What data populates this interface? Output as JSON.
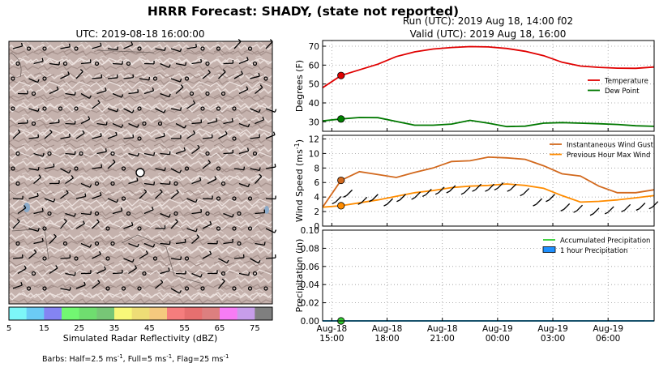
{
  "main_title": "HRRR Forecast: SHADY, (state not reported)",
  "map": {
    "title": "UTC: 2019-08-18 16:00:00",
    "colorbar_label": "Simulated Radar Reflectivity (dBZ)",
    "colorbar_ticks": [
      "5",
      "15",
      "25",
      "35",
      "45",
      "55",
      "65",
      "75"
    ],
    "colorbar_colors": [
      "#7df6f8",
      "#6bcbf5",
      "#8484f2",
      "#72f772",
      "#6fdd6f",
      "#77c676",
      "#f8f879",
      "#eedd76",
      "#f5c97e",
      "#f57d7d",
      "#e66f6f",
      "#dd7f7f",
      "#f77cf5",
      "#c79dea",
      "#7f7f7f"
    ],
    "barbs_note_a": "Barbs: Half=2.5 ms",
    "barbs_note_b": ", Full=5 ms",
    "barbs_note_c": ", Flag=25 ms",
    "sup_minus1": "-1"
  },
  "header": {
    "run": "Run (UTC): 2019 Aug 18, 14:00 f02",
    "valid": "Valid (UTC): 2019 Aug 18, 16:00"
  },
  "colors": {
    "temperature": "#e00000",
    "dew_point": "#007800",
    "gust": "#d2691e",
    "max_wind": "#ff8c00",
    "accum_precip": "#32cd32",
    "hourly_precip": "#1e90ff"
  },
  "chart_data": [
    {
      "type": "line",
      "ylabel": "Degrees (F)",
      "ylim": [
        25,
        73
      ],
      "yticks": [
        30,
        40,
        50,
        60,
        70
      ],
      "grid": true,
      "legend_position": "right",
      "x_hours": [
        0,
        1,
        2,
        3,
        4,
        5,
        6,
        7,
        8,
        9,
        10,
        11,
        12,
        13,
        14,
        15,
        16,
        17,
        18
      ],
      "highlight_hour": 1,
      "series": [
        {
          "name": "Temperature",
          "values": [
            48,
            54.5,
            57.5,
            60.5,
            64.5,
            67,
            68.5,
            69.3,
            69.8,
            69.6,
            68.8,
            67.3,
            65,
            61.5,
            59.5,
            58.8,
            58.4,
            58.3,
            59.0
          ]
        },
        {
          "name": "Dew Point",
          "values": [
            30.5,
            31.5,
            32.3,
            32.2,
            30.2,
            28.2,
            28.2,
            28.8,
            30.8,
            29.3,
            27.5,
            27.7,
            29.3,
            29.6,
            29.3,
            29.0,
            28.6,
            27.9,
            27.6
          ]
        }
      ]
    },
    {
      "type": "line",
      "ylabel": "Wind Speed (ms",
      "ylabel_sup": "-1",
      "ylim": [
        0,
        12.5
      ],
      "yticks": [
        0,
        2,
        4,
        6,
        8,
        10,
        12
      ],
      "grid": true,
      "legend_position": "top-right",
      "x_hours": [
        0,
        1,
        2,
        3,
        4,
        5,
        6,
        7,
        8,
        9,
        10,
        11,
        12,
        13,
        14,
        15,
        16,
        17,
        18
      ],
      "highlight_hour": 1,
      "series": [
        {
          "name": "Instantaneous Wind Gust",
          "values": [
            2.6,
            6.3,
            7.5,
            7.1,
            6.7,
            7.4,
            8.0,
            8.9,
            9.0,
            9.5,
            9.4,
            9.2,
            8.3,
            7.2,
            6.9,
            5.5,
            4.6,
            4.6,
            5.0
          ]
        },
        {
          "name": "Previous Hour Max Wind",
          "values": [
            2.6,
            2.8,
            3.2,
            3.6,
            4.1,
            4.6,
            4.9,
            5.3,
            5.5,
            5.6,
            5.8,
            5.6,
            5.2,
            4.2,
            3.3,
            3.4,
            3.6,
            3.9,
            4.2
          ]
        }
      ]
    },
    {
      "type": "line",
      "ylabel": "Precipitation (in)",
      "ylim": [
        0,
        0.1
      ],
      "yticks": [
        0.0,
        0.02,
        0.04,
        0.06,
        0.08,
        0.1
      ],
      "ytick_labels": [
        "0.00",
        "0.02",
        "0.04",
        "0.06",
        "0.08",
        "0.10"
      ],
      "grid": true,
      "legend_position": "top-right",
      "x_hours": [
        0,
        1,
        2,
        3,
        4,
        5,
        6,
        7,
        8,
        9,
        10,
        11,
        12,
        13,
        14,
        15,
        16,
        17,
        18
      ],
      "highlight_hour": 1,
      "series": [
        {
          "name": "Accumulated Precipitation",
          "values": [
            0,
            0,
            0,
            0,
            0,
            0,
            0,
            0,
            0,
            0,
            0,
            0,
            0,
            0,
            0,
            0,
            0,
            0,
            0
          ]
        },
        {
          "name": "1 hour Precipitation",
          "values": [
            0,
            0,
            0,
            0,
            0,
            0,
            0,
            0,
            0,
            0,
            0,
            0,
            0,
            0,
            0,
            0,
            0,
            0,
            0
          ]
        }
      ]
    }
  ],
  "xaxis": {
    "tick_hours": [
      0.5,
      3.5,
      6.5,
      9.5,
      12.5,
      15.5
    ],
    "labels_top": [
      "Aug-18",
      "Aug-18",
      "Aug-18",
      "Aug-19",
      "Aug-19",
      "Aug-19"
    ],
    "labels_bottom": [
      "15:00",
      "18:00",
      "21:00",
      "00:00",
      "03:00",
      "06:00"
    ]
  }
}
